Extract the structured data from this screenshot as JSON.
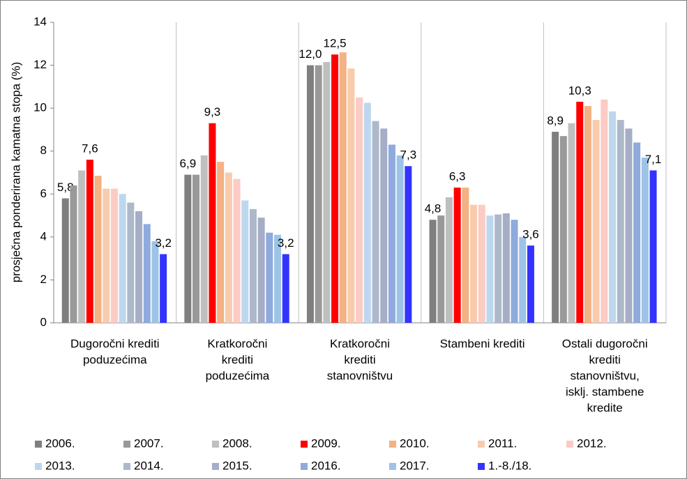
{
  "chart_data": {
    "type": "bar",
    "y_label": "prosječna ponderirana kamatna stopa (%)",
    "categories": [
      [
        "Dugoročni krediti",
        "poduzećima"
      ],
      [
        "Kratkoročni",
        "krediti",
        "poduzećima"
      ],
      [
        "Kratkoročni",
        "krediti",
        "stanovništvu"
      ],
      [
        "Stambeni krediti"
      ],
      [
        "Ostali dugoročni",
        "krediti",
        "stanovništvu,",
        "isklj. stambene",
        "kredite"
      ]
    ],
    "series": [
      {
        "name": "2006.",
        "color": "#7f7f7f",
        "values": [
          5.8,
          6.9,
          12.0,
          4.8,
          8.9
        ],
        "value_labels": [
          "5,8",
          "6,9",
          "12,0",
          "4,8",
          "8,9"
        ]
      },
      {
        "name": "2007.",
        "color": "#999999",
        "values": [
          6.4,
          6.9,
          12.0,
          5.0,
          8.7
        ]
      },
      {
        "name": "2008.",
        "color": "#bfbfbf",
        "values": [
          7.1,
          7.8,
          12.15,
          5.85,
          9.3
        ]
      },
      {
        "name": "2009.",
        "color": "#ff0000",
        "values": [
          7.6,
          9.3,
          12.5,
          6.3,
          10.3
        ],
        "value_labels": [
          "7,6",
          "9,3",
          "12,5",
          "6,3",
          "10,3"
        ]
      },
      {
        "name": "2010.",
        "color": "#f4b183",
        "values": [
          6.85,
          7.5,
          12.6,
          6.3,
          10.1
        ]
      },
      {
        "name": "2011.",
        "color": "#f8cbad",
        "values": [
          6.25,
          7.0,
          11.85,
          5.5,
          9.45
        ]
      },
      {
        "name": "2012.",
        "color": "#fbcbc4",
        "values": [
          6.25,
          6.7,
          10.5,
          5.5,
          10.4
        ]
      },
      {
        "name": "2013.",
        "color": "#bdd7ee",
        "values": [
          6.0,
          5.7,
          10.25,
          5.0,
          9.85
        ]
      },
      {
        "name": "2014.",
        "color": "#adb9ca",
        "values": [
          5.6,
          5.3,
          9.4,
          5.05,
          9.45
        ]
      },
      {
        "name": "2015.",
        "color": "#a5aec6",
        "values": [
          5.2,
          4.9,
          9.05,
          5.1,
          9.05
        ]
      },
      {
        "name": "2016.",
        "color": "#8faadc",
        "values": [
          4.6,
          4.2,
          8.3,
          4.8,
          8.4
        ]
      },
      {
        "name": "2017.",
        "color": "#9dc3e6",
        "values": [
          3.8,
          4.1,
          7.8,
          4.0,
          7.7
        ]
      },
      {
        "name": "1.-8./18.",
        "color": "#3333ff",
        "values": [
          3.2,
          3.2,
          7.3,
          3.6,
          7.1
        ],
        "value_labels": [
          "3,2",
          "3,2",
          "7,3",
          "3,6",
          "7,1"
        ]
      }
    ],
    "ylim": [
      0,
      14
    ],
    "yticks": [
      0,
      2,
      4,
      6,
      8,
      10,
      12,
      14
    ],
    "grid": "vertical"
  }
}
